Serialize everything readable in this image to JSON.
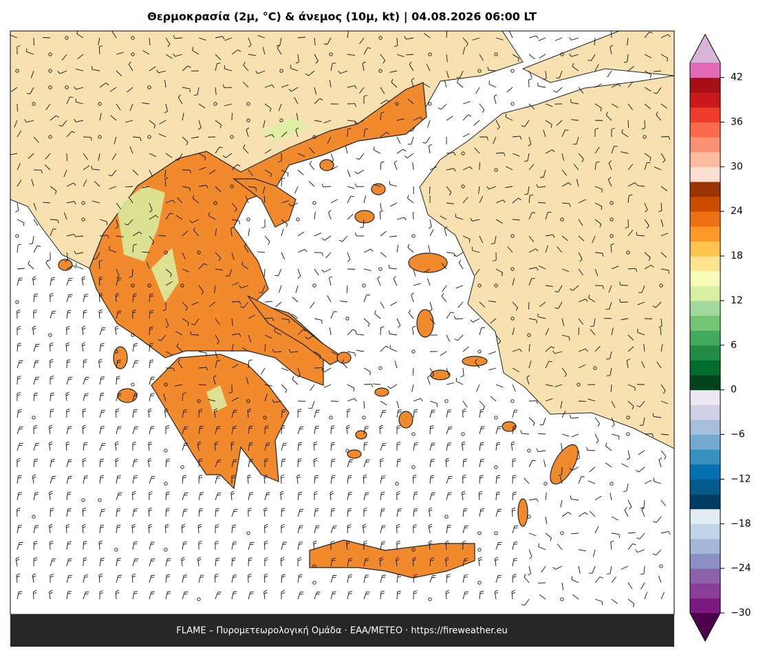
{
  "title": "Θερμοκρασία (2μ, °C) & άνεμος (10μ, kt)  |  04.08.2026 06:00 LT",
  "footer": "FLAME – Πυρομετεωρολογική Ομάδα · ΕΑΑ/METEO · https://fireweather.eu",
  "colorbar": {
    "lim": [
      -30,
      44
    ],
    "ticks": [
      {
        "value": -30,
        "label": "−30"
      },
      {
        "value": -24,
        "label": "−24"
      },
      {
        "value": -18,
        "label": "−18"
      },
      {
        "value": -12,
        "label": "−12"
      },
      {
        "value": -6,
        "label": "−6"
      },
      0,
      6,
      12,
      18,
      24,
      30,
      36,
      42
    ],
    "colors": [
      "#7b1a80",
      "#8b3d98",
      "#8c63ab",
      "#8c8fc3",
      "#a3b8d8",
      "#c1d5e9",
      "#e2ecf4",
      "#003c63",
      "#045a8d",
      "#0570b0",
      "#3690c0",
      "#74a9cf",
      "#a6bddb",
      "#d0d1e6",
      "#ece7f2",
      "#00441b",
      "#006d2c",
      "#238b45",
      "#41ab5d",
      "#74c476",
      "#a1d99b",
      "#d9f0a3",
      "#f7fcb9",
      "#fee391",
      "#fec44f",
      "#fe9929",
      "#ec7014",
      "#cc4c02",
      "#993404",
      "#fee0d2",
      "#fcbba1",
      "#fc9272",
      "#fb6a4a",
      "#ef3b2c",
      "#cb181d",
      "#a50f15",
      "#e36bb5"
    ],
    "over_color": "#d7b5d8",
    "under_color": "#4d004b"
  }
}
